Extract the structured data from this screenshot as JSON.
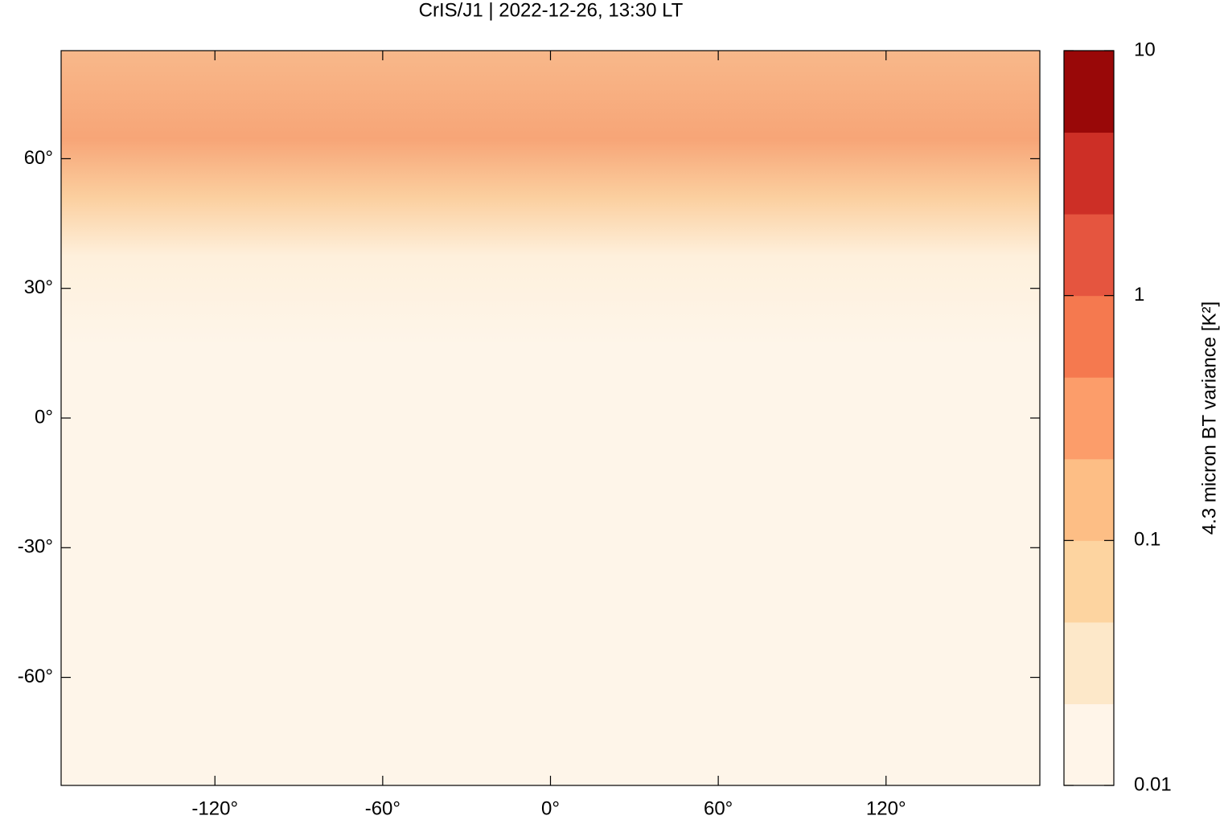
{
  "chart_data": {
    "type": "map",
    "title": "CrIS/J1 | 2022-12-26, 13:30 LT",
    "xlim": [
      -175,
      175
    ],
    "ylim": [
      -85,
      85
    ],
    "xticks": [
      {
        "value": -120,
        "label": "-120°"
      },
      {
        "value": -60,
        "label": "-60°"
      },
      {
        "value": 0,
        "label": "0°"
      },
      {
        "value": 60,
        "label": "60°"
      },
      {
        "value": 120,
        "label": "120°"
      }
    ],
    "yticks": [
      {
        "value": 60,
        "label": "60°"
      },
      {
        "value": 30,
        "label": "30°"
      },
      {
        "value": 0,
        "label": "0°"
      },
      {
        "value": -30,
        "label": "-30°"
      },
      {
        "value": -60,
        "label": "-60°"
      }
    ],
    "colorbar": {
      "label": "4.3 micron BT variance [K²]",
      "log_scale": true,
      "clim": [
        0.01,
        10
      ],
      "cticks": [
        0.01,
        0.1,
        1,
        10
      ],
      "colors": [
        "#fff5e9",
        "#fde8c9",
        "#fdd4a0",
        "#fdbe85",
        "#fc9d6a",
        "#f5794f",
        "#e5553f",
        "#cd2f26",
        "#990808"
      ]
    }
  }
}
